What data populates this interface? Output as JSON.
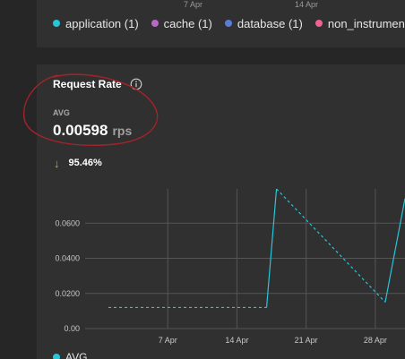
{
  "top_panel": {
    "axis_labels": [
      "7 Apr",
      "14 Apr"
    ],
    "legend": [
      {
        "label": "application (1)",
        "color": "#26c6da"
      },
      {
        "label": "cache (1)",
        "color": "#ba68c8"
      },
      {
        "label": "database (1)",
        "color": "#5c7bd9"
      },
      {
        "label": "non_instrumente",
        "color": "#f06292"
      }
    ]
  },
  "card": {
    "title": "Request Rate",
    "info_icon": "info-circle-icon",
    "stat_label": "AVG",
    "stat_value": "0.00598",
    "stat_unit": "rps",
    "change_icon": "arrow-down-icon",
    "change_text": "95.46%",
    "change_color": "#8bc34a"
  },
  "chart_data": {
    "type": "line",
    "x_tick_labels": [
      "7 Apr",
      "14 Apr",
      "21 Apr",
      "28 Apr"
    ],
    "y_tick_labels": [
      "0.00",
      "0.0200",
      "0.0400",
      "0.0600"
    ],
    "ylim": [
      0,
      0.0795
    ],
    "grid": true,
    "series": [
      {
        "name": "AVG",
        "color": "#26c6da",
        "points": [
          {
            "x": "Apr 1",
            "y": 0.012,
            "style": "dashed"
          },
          {
            "x": "Apr 17",
            "y": 0.012,
            "style": "dashed"
          },
          {
            "x": "Apr 18",
            "y": 0.0795,
            "style": "solid"
          },
          {
            "x": "Apr 29",
            "y": 0.015,
            "style": "dashed"
          },
          {
            "x": "Apr 31",
            "y": 0.074,
            "style": "solid"
          }
        ]
      }
    ],
    "legend": [
      {
        "label": "AVG",
        "color": "#26c6da"
      }
    ],
    "legend_position": "bottom-left"
  },
  "annotation_color": "#a8222a"
}
